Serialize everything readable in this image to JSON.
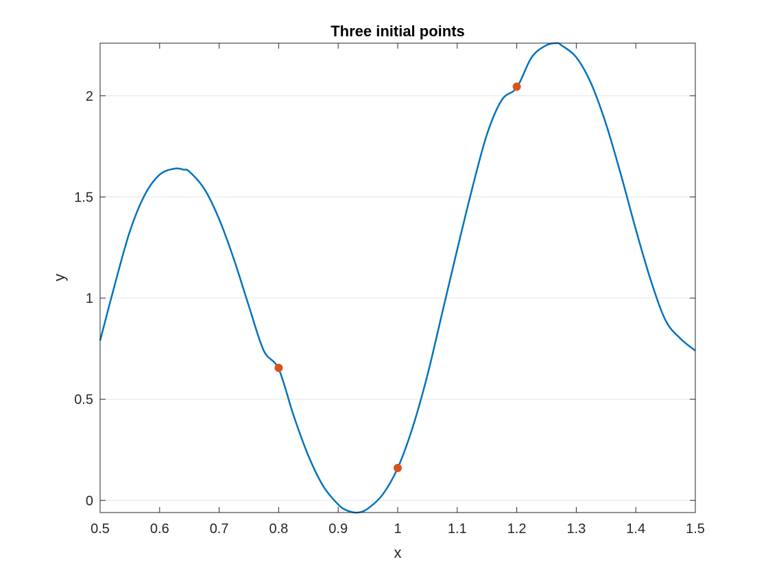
{
  "chart_data": {
    "type": "line",
    "title": "Three initial points",
    "xlabel": "x",
    "ylabel": "y",
    "xlim": [
      0.5,
      1.5
    ],
    "ylim": [
      -0.06,
      2.26
    ],
    "grid": "horizontal",
    "xticks": [
      0.5,
      0.6,
      0.7,
      0.8,
      0.9,
      1,
      1.1,
      1.2,
      1.3,
      1.4,
      1.5
    ],
    "yticks": [
      0,
      0.5,
      1,
      1.5,
      2
    ],
    "series": [
      {
        "type": "line",
        "color": "#0072BD",
        "x": [
          0.5,
          0.525,
          0.55,
          0.575,
          0.6,
          0.625,
          0.64,
          0.65,
          0.675,
          0.7,
          0.725,
          0.75,
          0.775,
          0.8,
          0.825,
          0.85,
          0.875,
          0.9,
          0.915,
          0.933,
          0.95,
          0.975,
          1.0,
          1.025,
          1.05,
          1.075,
          1.1,
          1.125,
          1.15,
          1.175,
          1.2,
          1.225,
          1.25,
          1.268,
          1.275,
          1.3,
          1.325,
          1.35,
          1.375,
          1.4,
          1.425,
          1.45,
          1.475,
          1.5
        ],
        "y": [
          0.79,
          1.07,
          1.33,
          1.51,
          1.61,
          1.64,
          1.635,
          1.625,
          1.54,
          1.39,
          1.19,
          0.96,
          0.74,
          0.65,
          0.42,
          0.22,
          0.07,
          -0.02,
          -0.05,
          -0.06,
          -0.04,
          0.03,
          0.16,
          0.36,
          0.62,
          0.93,
          1.24,
          1.54,
          1.81,
          1.98,
          2.04,
          2.19,
          2.25,
          2.26,
          2.25,
          2.19,
          2.06,
          1.86,
          1.61,
          1.34,
          1.09,
          0.89,
          0.8,
          0.74
        ]
      },
      {
        "type": "scatter",
        "color": "#D95319",
        "x": [
          0.8,
          1.0,
          1.2
        ],
        "y": [
          0.655,
          0.16,
          2.045
        ]
      }
    ]
  }
}
